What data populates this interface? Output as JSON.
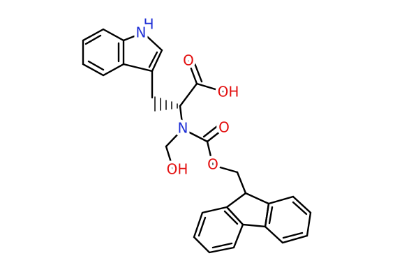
{
  "atoms": [
    "H",
    "N",
    "O",
    "OH",
    "N",
    "O",
    "O",
    "OH"
  ]
}
